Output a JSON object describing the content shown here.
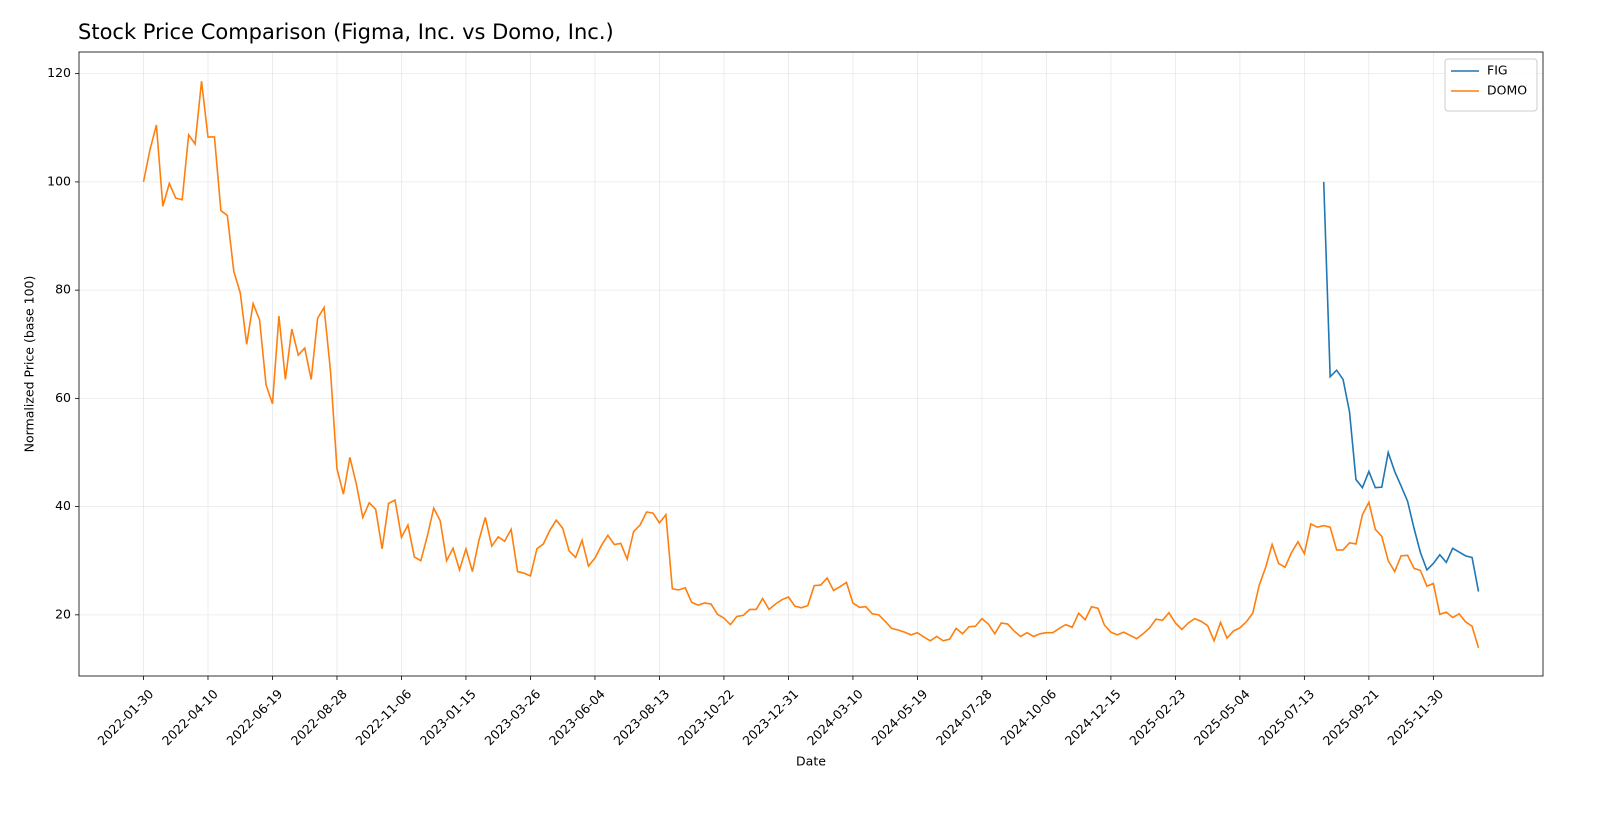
{
  "chart_data": {
    "type": "line",
    "title": "Stock Price Comparison (Figma, Inc. vs Domo, Inc.)",
    "x_label": "Date",
    "y_label": "Normalized Price (base 100)",
    "x": [
      "2022-01-30",
      "2022-02-06",
      "2022-02-13",
      "2022-02-20",
      "2022-02-27",
      "2022-03-06",
      "2022-03-13",
      "2022-03-20",
      "2022-03-27",
      "2022-04-03",
      "2022-04-10",
      "2022-04-17",
      "2022-04-24",
      "2022-05-01",
      "2022-05-08",
      "2022-05-15",
      "2022-05-22",
      "2022-05-29",
      "2022-06-05",
      "2022-06-12",
      "2022-06-19",
      "2022-06-26",
      "2022-07-03",
      "2022-07-10",
      "2022-07-17",
      "2022-07-24",
      "2022-07-31",
      "2022-08-07",
      "2022-08-14",
      "2022-08-21",
      "2022-08-28",
      "2022-09-04",
      "2022-09-11",
      "2022-09-18",
      "2022-09-25",
      "2022-10-02",
      "2022-10-09",
      "2022-10-16",
      "2022-10-23",
      "2022-10-30",
      "2022-11-06",
      "2022-11-13",
      "2022-11-20",
      "2022-11-27",
      "2022-12-04",
      "2022-12-11",
      "2022-12-18",
      "2022-12-25",
      "2023-01-01",
      "2023-01-08",
      "2023-01-15",
      "2023-01-22",
      "2023-01-29",
      "2023-02-05",
      "2023-02-12",
      "2023-02-19",
      "2023-02-26",
      "2023-03-05",
      "2023-03-12",
      "2023-03-19",
      "2023-03-26",
      "2023-04-02",
      "2023-04-09",
      "2023-04-16",
      "2023-04-23",
      "2023-04-30",
      "2023-05-07",
      "2023-05-14",
      "2023-05-21",
      "2023-05-28",
      "2023-06-04",
      "2023-06-11",
      "2023-06-18",
      "2023-06-25",
      "2023-07-02",
      "2023-07-09",
      "2023-07-16",
      "2023-07-23",
      "2023-07-30",
      "2023-08-06",
      "2023-08-13",
      "2023-08-20",
      "2023-08-27",
      "2023-09-03",
      "2023-09-10",
      "2023-09-17",
      "2023-09-24",
      "2023-10-01",
      "2023-10-08",
      "2023-10-15",
      "2023-10-22",
      "2023-10-29",
      "2023-11-05",
      "2023-11-12",
      "2023-11-19",
      "2023-11-26",
      "2023-12-03",
      "2023-12-10",
      "2023-12-17",
      "2023-12-24",
      "2023-12-31",
      "2024-01-07",
      "2024-01-14",
      "2024-01-21",
      "2024-01-28",
      "2024-02-04",
      "2024-02-11",
      "2024-02-18",
      "2024-02-25",
      "2024-03-03",
      "2024-03-10",
      "2024-03-17",
      "2024-03-24",
      "2024-03-31",
      "2024-04-07",
      "2024-04-14",
      "2024-04-21",
      "2024-04-28",
      "2024-05-05",
      "2024-05-12",
      "2024-05-19",
      "2024-05-26",
      "2024-06-02",
      "2024-06-09",
      "2024-06-16",
      "2024-06-23",
      "2024-06-30",
      "2024-07-07",
      "2024-07-14",
      "2024-07-21",
      "2024-07-28",
      "2024-08-04",
      "2024-08-11",
      "2024-08-18",
      "2024-08-25",
      "2024-09-01",
      "2024-09-08",
      "2024-09-15",
      "2024-09-22",
      "2024-09-29",
      "2024-10-06",
      "2024-10-13",
      "2024-10-20",
      "2024-10-27",
      "2024-11-03",
      "2024-11-10",
      "2024-11-17",
      "2024-11-24",
      "2024-12-01",
      "2024-12-08",
      "2024-12-15",
      "2024-12-22",
      "2024-12-29",
      "2025-01-05",
      "2025-01-12",
      "2025-01-19",
      "2025-01-26",
      "2025-02-02",
      "2025-02-09",
      "2025-02-16",
      "2025-02-23",
      "2025-03-02",
      "2025-03-09",
      "2025-03-16",
      "2025-03-23",
      "2025-03-30",
      "2025-04-06",
      "2025-04-13",
      "2025-04-20",
      "2025-04-27",
      "2025-05-04",
      "2025-05-11",
      "2025-05-18",
      "2025-05-25",
      "2025-06-01",
      "2025-06-08",
      "2025-06-15",
      "2025-06-22",
      "2025-06-29",
      "2025-07-06",
      "2025-07-13",
      "2025-07-20",
      "2025-07-27",
      "2025-08-03",
      "2025-08-10",
      "2025-08-17",
      "2025-08-24",
      "2025-08-31",
      "2025-09-07",
      "2025-09-14",
      "2025-09-21",
      "2025-09-28",
      "2025-10-05",
      "2025-10-12",
      "2025-10-19",
      "2025-10-26",
      "2025-11-02",
      "2025-11-09",
      "2025-11-16",
      "2025-11-23",
      "2025-11-30",
      "2025-12-07",
      "2025-12-14",
      "2025-12-21",
      "2025-12-28",
      "2026-01-04",
      "2026-01-11",
      "2026-01-18"
    ],
    "series": [
      {
        "name": "FIG",
        "color": "#1f77b4",
        "values": [
          null,
          null,
          null,
          null,
          null,
          null,
          null,
          null,
          null,
          null,
          null,
          null,
          null,
          null,
          null,
          null,
          null,
          null,
          null,
          null,
          null,
          null,
          null,
          null,
          null,
          null,
          null,
          null,
          null,
          null,
          null,
          null,
          null,
          null,
          null,
          null,
          null,
          null,
          null,
          null,
          null,
          null,
          null,
          null,
          null,
          null,
          null,
          null,
          null,
          null,
          null,
          null,
          null,
          null,
          null,
          null,
          null,
          null,
          null,
          null,
          null,
          null,
          null,
          null,
          null,
          null,
          null,
          null,
          null,
          null,
          null,
          null,
          null,
          null,
          null,
          null,
          null,
          null,
          null,
          null,
          null,
          null,
          null,
          null,
          null,
          null,
          null,
          null,
          null,
          null,
          null,
          null,
          null,
          null,
          null,
          null,
          null,
          null,
          null,
          null,
          null,
          null,
          null,
          null,
          null,
          null,
          null,
          null,
          null,
          null,
          null,
          null,
          null,
          null,
          null,
          null,
          null,
          null,
          null,
          null,
          null,
          null,
          null,
          null,
          null,
          null,
          null,
          null,
          null,
          null,
          null,
          null,
          null,
          null,
          null,
          null,
          null,
          null,
          null,
          null,
          null,
          null,
          null,
          null,
          null,
          null,
          null,
          null,
          null,
          null,
          null,
          null,
          null,
          null,
          null,
          null,
          null,
          null,
          null,
          null,
          null,
          null,
          null,
          null,
          null,
          null,
          null,
          null,
          null,
          null,
          null,
          null,
          null,
          null,
          null,
          null,
          null,
          null,
          null,
          null,
          null,
          null,
          null,
          100,
          64,
          65.2,
          63.5,
          57.5,
          45,
          43.5,
          46.5,
          43.5,
          43.6,
          50,
          46.5,
          43.8,
          41,
          36,
          31.5,
          28.3,
          29.5,
          31.1,
          29.7,
          32.3,
          31.6,
          30.9,
          30.6,
          24.3
        ]
      },
      {
        "name": "DOMO",
        "color": "#ff7f0e",
        "values": [
          100,
          105.9,
          110.5,
          95.5,
          99.7,
          97,
          96.7,
          108.7,
          107,
          118.6,
          108.3,
          108.3,
          94.7,
          93.8,
          83.5,
          79.5,
          70,
          77.5,
          74.5,
          62.5,
          59,
          75.2,
          63.5,
          72.8,
          68,
          69.3,
          63.5,
          74.8,
          76.8,
          65,
          47,
          42.3,
          49.1,
          44.2,
          38,
          40.7,
          39.5,
          32.2,
          40.6,
          41.2,
          34.3,
          36.6,
          30.7,
          30,
          34.5,
          39.7,
          37.4,
          30,
          32.3,
          28.3,
          32.2,
          28,
          33.7,
          38,
          32.7,
          34.4,
          33.6,
          35.8,
          28,
          27.7,
          27.2,
          32.2,
          33.1,
          35.6,
          37.5,
          36,
          31.8,
          30.6,
          33.8,
          29,
          30.5,
          32.8,
          34.7,
          33,
          33.2,
          30.3,
          35.4,
          36.6,
          39,
          38.8,
          37,
          38.5,
          24.8,
          24.6,
          25,
          22.3,
          21.8,
          22.2,
          22,
          20.1,
          19.4,
          18.2,
          19.7,
          19.9,
          21,
          21,
          23,
          21,
          22,
          22.8,
          23.3,
          21.6,
          21.3,
          21.7,
          25.4,
          25.5,
          26.8,
          24.5,
          25.2,
          26,
          22.2,
          21.4,
          21.5,
          20.2,
          20,
          18.8,
          17.5,
          17.2,
          16.8,
          16.3,
          16.7,
          15.9,
          15.2,
          16,
          15.2,
          15.5,
          17.5,
          16.5,
          17.8,
          17.9,
          19.3,
          18.3,
          16.5,
          18.5,
          18.3,
          17,
          16,
          16.7,
          16,
          16.5,
          16.7,
          16.7,
          17.5,
          18.2,
          17.7,
          20.3,
          19.1,
          21.5,
          21.2,
          18.1,
          16.8,
          16.3,
          16.8,
          16.2,
          15.6,
          16.5,
          17.6,
          19.2,
          19,
          20.4,
          18.5,
          17.3,
          18.5,
          19.3,
          18.8,
          18,
          15.2,
          18.6,
          15.7,
          17,
          17.6,
          18.7,
          20.3,
          25.5,
          28.8,
          33,
          29.5,
          28.8,
          31.5,
          33.5,
          31.3,
          36.8,
          36.2,
          36.5,
          36.2,
          32,
          32,
          33.3,
          33.1,
          38.5,
          40.8,
          35.8,
          34.5,
          30,
          28,
          30.9,
          31,
          28.6,
          28.2,
          25.3,
          25.8,
          20.1,
          20.5,
          19.5,
          20.2,
          18.7,
          17.9,
          13.9
        ]
      }
    ],
    "xlim": [
      "2021-11-21",
      "2026-03-29"
    ],
    "xticks": [
      "2022-01-30",
      "2022-04-10",
      "2022-06-19",
      "2022-08-28",
      "2022-11-06",
      "2023-01-15",
      "2023-03-26",
      "2023-06-04",
      "2023-08-13",
      "2023-10-22",
      "2023-12-31",
      "2024-03-10",
      "2024-05-19",
      "2024-07-28",
      "2024-10-06",
      "2024-12-15",
      "2025-02-23",
      "2025-05-04",
      "2025-07-13",
      "2025-09-21",
      "2025-11-30"
    ],
    "ylim": [
      8.7,
      124
    ],
    "yticks": [
      20,
      40,
      60,
      80,
      100,
      120
    ],
    "grid": true,
    "legend": "upper right"
  }
}
